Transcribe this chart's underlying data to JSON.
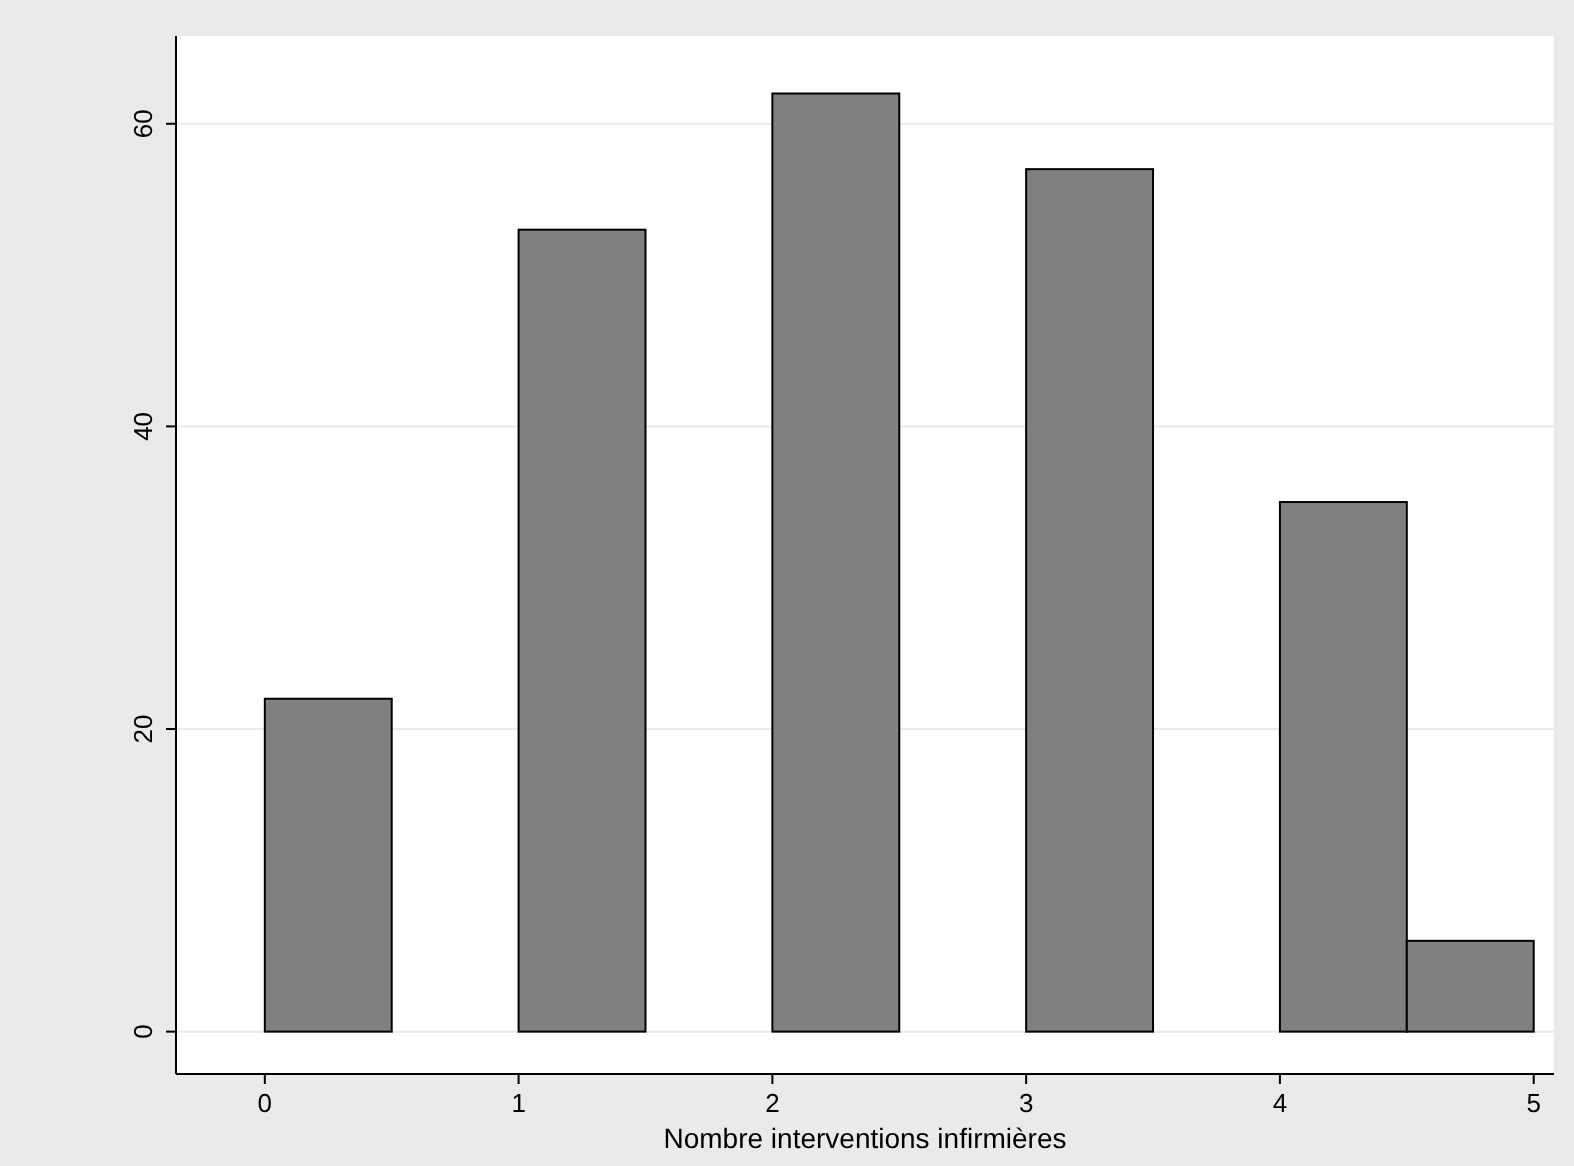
{
  "chart_data": {
    "type": "histogram",
    "xlabel": "Nombre interventions infirmières",
    "bins": [
      0,
      0.5,
      1,
      1.5,
      2,
      2.5,
      3,
      3.5,
      4,
      4.5,
      5
    ],
    "values": [
      22,
      0,
      53,
      0,
      62,
      0,
      57,
      0,
      35,
      6
    ],
    "color": "#808080",
    "xlim": [
      -0.35,
      5.08
    ],
    "xticks": [
      0,
      1,
      2,
      3,
      4,
      5
    ],
    "ylim": [
      -2.8,
      65.8
    ],
    "yticks": [
      0,
      20,
      40,
      60
    ],
    "grid": "y"
  }
}
